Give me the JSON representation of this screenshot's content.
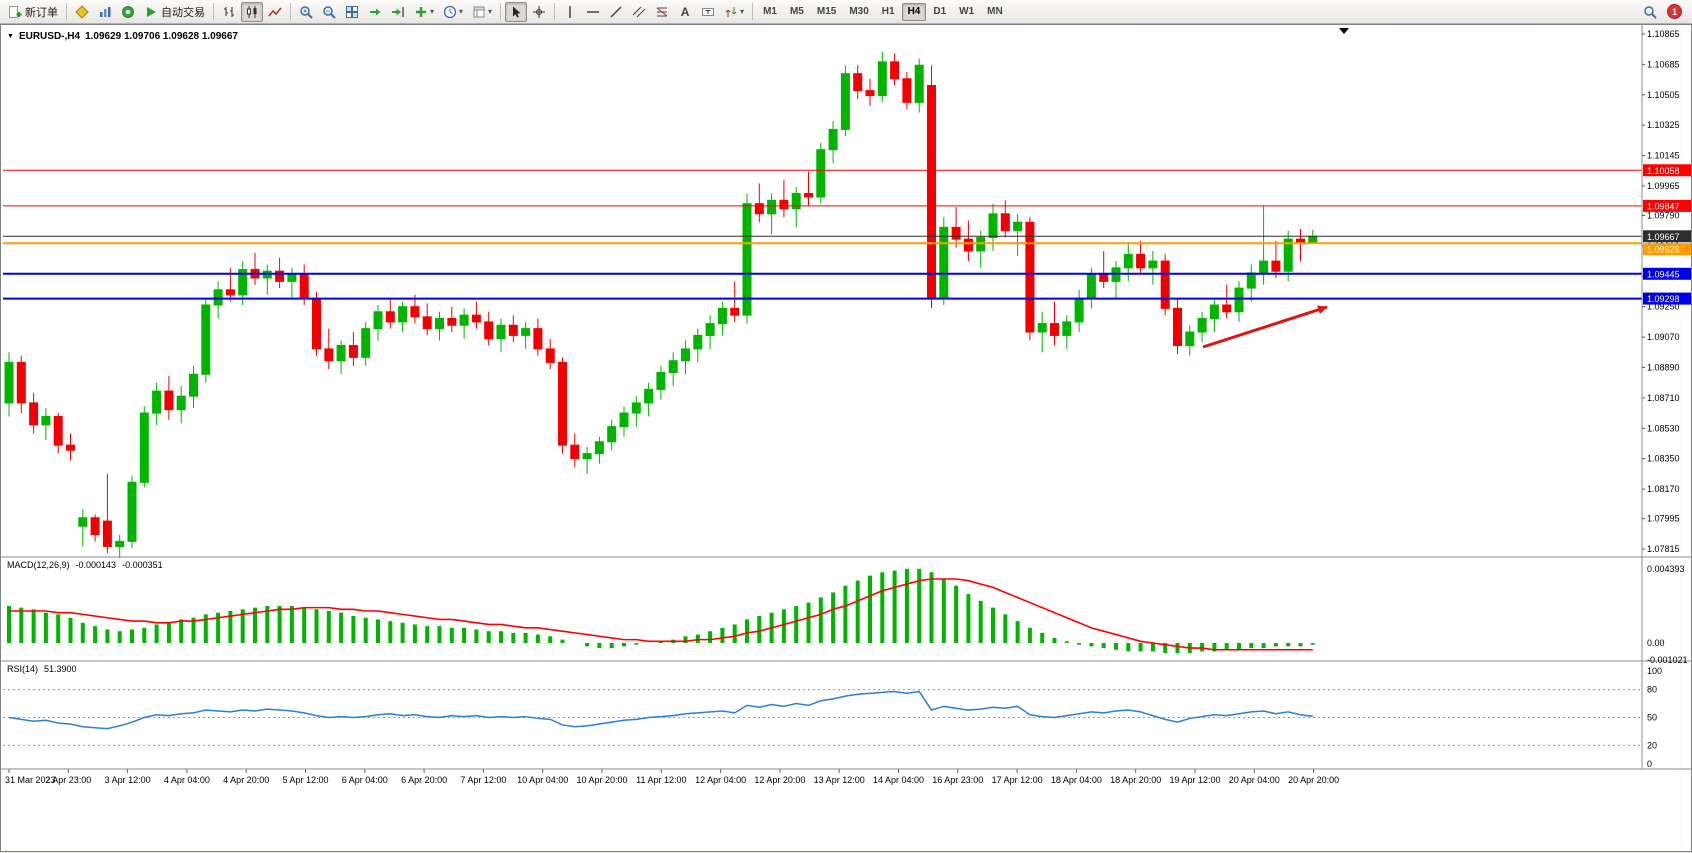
{
  "toolbar": {
    "new_order_label": "新订单",
    "auto_trading_label": "自动交易",
    "timeframes": [
      "M1",
      "M5",
      "M15",
      "M30",
      "H1",
      "H4",
      "D1",
      "W1",
      "MN"
    ],
    "active_timeframe": "H4",
    "notification_count": "1"
  },
  "chart_data": {
    "type": "candlestick",
    "symbol_period": "EURUSD-,H4",
    "ohlc_text": "1.09629 1.09706 1.09628 1.09667",
    "open": "1.09629",
    "high": "1.09706",
    "low": "1.09628",
    "close": "1.09667",
    "colors": {
      "up": "#00B400",
      "down": "#F00000",
      "macd_hist": "#00B400",
      "macd_signal": "#FF0000",
      "rsi": "#2A7FD4"
    },
    "price_axis_ticks": [
      "1.10865",
      "1.10685",
      "1.10505",
      "1.10325",
      "1.10145",
      "1.09965",
      "1.09790",
      "1.09610",
      "1.09430",
      "1.09250",
      "1.09070",
      "1.08890",
      "1.08710",
      "1.08530",
      "1.08350",
      "1.08170",
      "1.07995",
      "1.07815"
    ],
    "price_lines": [
      {
        "price": 1.10058,
        "label": "1.10058",
        "color": "#FF0000",
        "width": 1
      },
      {
        "price": 1.09847,
        "label": "1.09847",
        "color": "#FF0000",
        "width": 1
      },
      {
        "price": 1.09445,
        "label": "1.09445",
        "color": "#0000E8",
        "width": 2
      },
      {
        "price": 1.09298,
        "label": "1.09298",
        "color": "#0000E8",
        "width": 2
      },
      {
        "price": 1.09626,
        "label": "1.09626",
        "color": "#FF9C00",
        "width": 2,
        "badge_dy": 6
      },
      {
        "price": 1.09667,
        "label": "1.09667",
        "color": "#2E2E2E",
        "width": 1
      }
    ],
    "candles": [
      [
        1.0868,
        1.0898,
        1.086,
        1.0892
      ],
      [
        1.0892,
        1.0896,
        1.0862,
        1.0868
      ],
      [
        1.0868,
        1.0874,
        1.085,
        1.0855
      ],
      [
        1.0855,
        1.0865,
        1.0846,
        1.086
      ],
      [
        1.086,
        1.0862,
        1.0838,
        1.0843
      ],
      [
        1.0843,
        1.085,
        1.0834,
        1.084
      ],
      [
        1.0795,
        1.0805,
        1.0783,
        1.08
      ],
      [
        1.08,
        1.0802,
        1.0786,
        1.079
      ],
      [
        1.0798,
        1.0826,
        1.0779,
        1.0783
      ],
      [
        1.0783,
        1.079,
        1.0776,
        1.0786
      ],
      [
        1.0786,
        1.0825,
        1.0782,
        1.0821
      ],
      [
        1.0821,
        1.0866,
        1.0818,
        1.0862
      ],
      [
        1.0862,
        1.088,
        1.0855,
        1.0875
      ],
      [
        1.0875,
        1.0884,
        1.0858,
        1.0864
      ],
      [
        1.0864,
        1.0878,
        1.0856,
        1.0872
      ],
      [
        1.0872,
        1.089,
        1.0865,
        1.0885
      ],
      [
        1.0885,
        1.093,
        1.088,
        1.0926
      ],
      [
        1.0926,
        1.094,
        1.0918,
        1.0935
      ],
      [
        1.0935,
        1.0948,
        1.0928,
        1.0932
      ],
      [
        1.0932,
        1.0952,
        1.0926,
        1.0947
      ],
      [
        1.0947,
        1.0957,
        1.0938,
        1.0942
      ],
      [
        1.0942,
        1.095,
        1.0932,
        1.0946
      ],
      [
        1.0946,
        1.0954,
        1.0936,
        1.094
      ],
      [
        1.094,
        1.0948,
        1.093,
        1.0944
      ],
      [
        1.0944,
        1.095,
        1.0926,
        1.093
      ],
      [
        1.093,
        1.0934,
        1.0896,
        1.09
      ],
      [
        1.09,
        1.0912,
        1.0888,
        1.0893
      ],
      [
        1.0893,
        1.0905,
        1.0885,
        1.0902
      ],
      [
        1.0902,
        1.091,
        1.089,
        1.0895
      ],
      [
        1.0895,
        1.0916,
        1.089,
        1.0912
      ],
      [
        1.0912,
        1.0926,
        1.0905,
        1.0922
      ],
      [
        1.0922,
        1.093,
        1.0912,
        1.0916
      ],
      [
        1.0916,
        1.0928,
        1.091,
        1.0925
      ],
      [
        1.0925,
        1.0932,
        1.0915,
        1.0919
      ],
      [
        1.0919,
        1.0927,
        1.0908,
        1.0912
      ],
      [
        1.0912,
        1.0922,
        1.0905,
        1.0918
      ],
      [
        1.0918,
        1.0925,
        1.091,
        1.0914
      ],
      [
        1.0914,
        1.0924,
        1.0906,
        1.092
      ],
      [
        1.092,
        1.0928,
        1.0912,
        1.0916
      ],
      [
        1.0916,
        1.0922,
        1.0902,
        1.0906
      ],
      [
        1.0906,
        1.0918,
        1.0898,
        1.0914
      ],
      [
        1.0914,
        1.092,
        1.0904,
        1.0908
      ],
      [
        1.0908,
        1.0916,
        1.09,
        1.0912
      ],
      [
        1.0912,
        1.0918,
        1.0896,
        1.09
      ],
      [
        1.09,
        1.0906,
        1.0888,
        1.0892
      ],
      [
        1.0892,
        1.0895,
        1.0838,
        1.0843
      ],
      [
        1.0843,
        1.085,
        1.083,
        1.0835
      ],
      [
        1.0835,
        1.0842,
        1.0826,
        1.0838
      ],
      [
        1.0838,
        1.0848,
        1.0832,
        1.0845
      ],
      [
        1.0845,
        1.0858,
        1.084,
        1.0854
      ],
      [
        1.0854,
        1.0866,
        1.0848,
        1.0862
      ],
      [
        1.0862,
        1.0872,
        1.0854,
        1.0868
      ],
      [
        1.0868,
        1.088,
        1.086,
        1.0876
      ],
      [
        1.0876,
        1.089,
        1.087,
        1.0886
      ],
      [
        1.0886,
        1.0898,
        1.0878,
        1.0893
      ],
      [
        1.0893,
        1.0905,
        1.0885,
        1.09
      ],
      [
        1.09,
        1.0912,
        1.0892,
        1.0908
      ],
      [
        1.0908,
        1.092,
        1.09,
        1.0915
      ],
      [
        1.0915,
        1.0928,
        1.0908,
        1.0924
      ],
      [
        1.0924,
        1.094,
        1.0916,
        1.092
      ],
      [
        1.092,
        1.0992,
        1.0915,
        1.0986
      ],
      [
        1.0986,
        1.0998,
        1.0975,
        1.098
      ],
      [
        1.098,
        1.0992,
        1.0968,
        1.0988
      ],
      [
        1.0988,
        1.1,
        1.0978,
        1.0983
      ],
      [
        1.0983,
        1.0996,
        1.0972,
        1.0992
      ],
      [
        1.0992,
        1.1005,
        1.0985,
        1.099
      ],
      [
        1.099,
        1.1022,
        1.0986,
        1.1018
      ],
      [
        1.1018,
        1.1035,
        1.101,
        1.103
      ],
      [
        1.103,
        1.1068,
        1.1026,
        1.1063
      ],
      [
        1.1063,
        1.1068,
        1.1048,
        1.1053
      ],
      [
        1.1053,
        1.106,
        1.1044,
        1.105
      ],
      [
        1.105,
        1.1076,
        1.1046,
        1.107
      ],
      [
        1.107,
        1.1075,
        1.1056,
        1.106
      ],
      [
        1.106,
        1.1064,
        1.1042,
        1.1046
      ],
      [
        1.1046,
        1.1072,
        1.104,
        1.1068
      ],
      [
        1.1056,
        1.1068,
        1.0924,
        1.093
      ],
      [
        1.093,
        1.0978,
        1.0926,
        1.0972
      ],
      [
        1.0972,
        1.0984,
        1.096,
        1.0965
      ],
      [
        1.0965,
        1.0976,
        1.0952,
        1.0958
      ],
      [
        1.0958,
        1.097,
        1.0948,
        1.0966
      ],
      [
        1.0966,
        1.0986,
        1.0958,
        1.098
      ],
      [
        1.098,
        1.0988,
        1.0966,
        1.097
      ],
      [
        1.097,
        1.098,
        1.0955,
        1.0975
      ],
      [
        1.0975,
        1.0978,
        1.0905,
        1.091
      ],
      [
        1.091,
        1.0922,
        1.0898,
        1.0915
      ],
      [
        1.0915,
        1.0928,
        1.0902,
        1.0908
      ],
      [
        1.0908,
        1.092,
        1.09,
        1.0916
      ],
      [
        1.0916,
        1.0935,
        1.091,
        1.093
      ],
      [
        1.093,
        1.0948,
        1.0924,
        1.0944
      ],
      [
        1.0944,
        1.0958,
        1.0936,
        1.094
      ],
      [
        1.094,
        1.0952,
        1.093,
        1.0948
      ],
      [
        1.0948,
        1.0962,
        1.094,
        1.0956
      ],
      [
        1.0956,
        1.0964,
        1.0944,
        1.0948
      ],
      [
        1.0948,
        1.0958,
        1.0938,
        1.0952
      ],
      [
        1.0952,
        1.0956,
        1.092,
        1.0924
      ],
      [
        1.0924,
        1.093,
        1.0897,
        1.0902
      ],
      [
        1.0902,
        1.0914,
        1.0896,
        1.091
      ],
      [
        1.091,
        1.0922,
        1.0904,
        1.0918
      ],
      [
        1.0918,
        1.093,
        1.091,
        1.0926
      ],
      [
        1.0926,
        1.0938,
        1.0918,
        1.0922
      ],
      [
        1.0922,
        1.094,
        1.0916,
        1.0936
      ],
      [
        1.0936,
        1.095,
        1.0928,
        1.0945
      ],
      [
        1.0945,
        1.0985,
        1.0938,
        1.0952
      ],
      [
        1.0952,
        1.0964,
        1.0942,
        1.0946
      ],
      [
        1.0946,
        1.097,
        1.094,
        1.0965
      ],
      [
        1.0965,
        1.0971,
        1.0952,
        1.0963
      ],
      [
        1.09629,
        1.09706,
        1.09628,
        1.09667
      ]
    ],
    "x_labels": [
      "31 Mar 2023",
      "2 Apr 23:00",
      "3 Apr 12:00",
      "4 Apr 04:00",
      "4 Apr 20:00",
      "5 Apr 12:00",
      "6 Apr 04:00",
      "6 Apr 20:00",
      "7 Apr 12:00",
      "10 Apr 04:00",
      "10 Apr 20:00",
      "11 Apr 12:00",
      "12 Apr 04:00",
      "12 Apr 20:00",
      "13 Apr 12:00",
      "14 Apr 04:00",
      "16 Apr 23:00",
      "17 Apr 12:00",
      "18 Apr 04:00",
      "18 Apr 20:00",
      "19 Apr 12:00",
      "20 Apr 04:00",
      "20 Apr 20:00"
    ],
    "macd": {
      "name": "MACD(12,26,9)",
      "value_main": "-0.000143",
      "value_signal": "-0.000351",
      "axis": [
        {
          "v": 0.004393,
          "label": "0.004393"
        },
        {
          "v": 0,
          "label": "0.00"
        },
        {
          "v": -0.001021,
          "label": "-0.001021"
        }
      ],
      "histogram": [
        0.0022,
        0.0021,
        0.002,
        0.0018,
        0.0017,
        0.0015,
        0.0012,
        0.001,
        0.0008,
        0.0007,
        0.0008,
        0.0009,
        0.0011,
        0.0012,
        0.0014,
        0.0015,
        0.0017,
        0.0018,
        0.0019,
        0.002,
        0.0021,
        0.0022,
        0.0022,
        0.0022,
        0.0021,
        0.002,
        0.0019,
        0.0018,
        0.0016,
        0.0015,
        0.0014,
        0.0013,
        0.0012,
        0.0011,
        0.001,
        0.001,
        0.0009,
        0.0009,
        0.0008,
        0.0007,
        0.0007,
        0.0006,
        0.0006,
        0.0005,
        0.0004,
        0.0002,
        0.0,
        -0.0002,
        -0.0003,
        -0.0003,
        -0.0002,
        -0.0001,
        0.0,
        0.0001,
        0.0002,
        0.0004,
        0.0005,
        0.0007,
        0.0009,
        0.0011,
        0.0014,
        0.0016,
        0.0018,
        0.002,
        0.0022,
        0.0024,
        0.0027,
        0.003,
        0.0034,
        0.0037,
        0.004,
        0.0042,
        0.0043,
        0.0044,
        0.0044,
        0.0042,
        0.0038,
        0.0034,
        0.0029,
        0.0025,
        0.0021,
        0.0017,
        0.0013,
        0.0009,
        0.0006,
        0.0003,
        0.0001,
        -0.0001,
        -0.0002,
        -0.0003,
        -0.0004,
        -0.0005,
        -0.0005,
        -0.0005,
        -0.0006,
        -0.0006,
        -0.0006,
        -0.0005,
        -0.0005,
        -0.0004,
        -0.0004,
        -0.0003,
        -0.0003,
        -0.0002,
        -0.0002,
        -0.0002,
        -0.0001
      ],
      "signal": [
        0.0019,
        0.0019,
        0.0019,
        0.0019,
        0.0018,
        0.0018,
        0.0017,
        0.0016,
        0.0015,
        0.0014,
        0.0013,
        0.0013,
        0.0012,
        0.0012,
        0.0013,
        0.0013,
        0.0014,
        0.0015,
        0.0016,
        0.0017,
        0.0018,
        0.0019,
        0.002,
        0.002,
        0.0021,
        0.0021,
        0.0021,
        0.002,
        0.002,
        0.0019,
        0.0019,
        0.0018,
        0.0017,
        0.0016,
        0.0015,
        0.0014,
        0.0014,
        0.0013,
        0.0012,
        0.0011,
        0.0011,
        0.001,
        0.0009,
        0.0009,
        0.0008,
        0.0007,
        0.0006,
        0.0005,
        0.0004,
        0.0003,
        0.0002,
        0.0002,
        0.0001,
        0.0001,
        0.0001,
        0.0001,
        0.0002,
        0.0002,
        0.0003,
        0.0004,
        0.0006,
        0.0007,
        0.0009,
        0.0011,
        0.0013,
        0.0015,
        0.0017,
        0.002,
        0.0022,
        0.0025,
        0.0028,
        0.0031,
        0.0033,
        0.0035,
        0.0037,
        0.0038,
        0.0038,
        0.0038,
        0.0037,
        0.0035,
        0.0033,
        0.003,
        0.0027,
        0.0024,
        0.0021,
        0.0018,
        0.0015,
        0.0012,
        0.0009,
        0.0007,
        0.0005,
        0.0003,
        0.0001,
        0.0,
        -0.0001,
        -0.0002,
        -0.0003,
        -0.0003,
        -0.0004,
        -0.0004,
        -0.0004,
        -0.0004,
        -0.0004,
        -0.0004,
        -0.0004,
        -0.0004,
        -0.0004
      ]
    },
    "rsi": {
      "name": "RSI(14)",
      "value_text": "51.3900",
      "levels": [
        80,
        50,
        20
      ],
      "axis": [
        {
          "v": 100,
          "label": "100"
        },
        {
          "v": 80,
          "label": "80"
        },
        {
          "v": 50,
          "label": "50"
        },
        {
          "v": 20,
          "label": "20"
        },
        {
          "v": 0,
          "label": "0"
        }
      ],
      "values": [
        50,
        48,
        46,
        47,
        44,
        43,
        40,
        39,
        38,
        41,
        45,
        50,
        53,
        52,
        54,
        55,
        58,
        57,
        56,
        58,
        57,
        59,
        58,
        57,
        55,
        52,
        50,
        51,
        50,
        51,
        53,
        54,
        52,
        53,
        51,
        50,
        52,
        51,
        52,
        50,
        51,
        50,
        51,
        49,
        48,
        42,
        40,
        41,
        43,
        45,
        47,
        48,
        50,
        51,
        52,
        54,
        55,
        56,
        57,
        55,
        63,
        61,
        64,
        62,
        65,
        63,
        68,
        70,
        73,
        75,
        76,
        77,
        78,
        76,
        78,
        58,
        62,
        60,
        58,
        59,
        61,
        60,
        62,
        53,
        51,
        50,
        52,
        54,
        56,
        55,
        57,
        58,
        56,
        52,
        48,
        45,
        49,
        51,
        53,
        52,
        54,
        56,
        57,
        54,
        56,
        53,
        51.39
      ]
    },
    "annotations": [
      {
        "type": "arrow",
        "color": "#E01212",
        "from": [
          1202,
          322
        ],
        "to": [
          1326,
          282
        ]
      }
    ]
  }
}
